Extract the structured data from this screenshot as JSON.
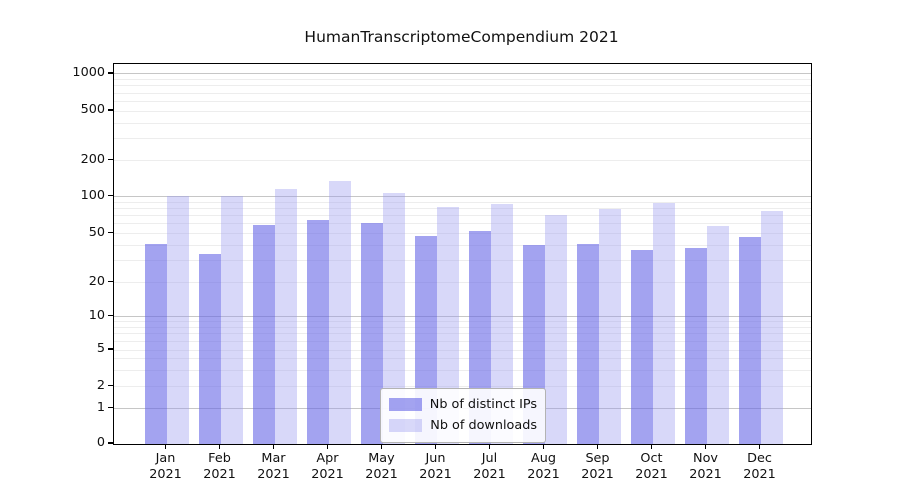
{
  "chart_data": {
    "type": "bar",
    "title": "HumanTranscriptomeCompendium 2021",
    "categories": [
      "Jan 2021",
      "Feb 2021",
      "Mar 2021",
      "Apr 2021",
      "May 2021",
      "Jun 2021",
      "Jul 2021",
      "Aug 2021",
      "Sep 2021",
      "Oct 2021",
      "Nov 2021",
      "Dec 2021"
    ],
    "series": [
      {
        "name": "Nb of distinct IPs",
        "color": "rgba(102,102,230,0.6)",
        "values": [
          41,
          34,
          59,
          65,
          61,
          48,
          52,
          40,
          41,
          37,
          38,
          47
        ]
      },
      {
        "name": "Nb of downloads",
        "color": "rgba(153,153,238,0.38)",
        "values": [
          101,
          102,
          115,
          134,
          108,
          82,
          88,
          71,
          80,
          89,
          58,
          76
        ]
      }
    ],
    "xlabel": "",
    "ylabel": "",
    "yscale": "symlog",
    "yticks": [
      0,
      1,
      2,
      5,
      10,
      20,
      50,
      100,
      200,
      500,
      1000
    ],
    "ylim": [
      0,
      1200
    ],
    "grid": true,
    "legend": {
      "entries": [
        "Nb of distinct IPs",
        "Nb of downloads"
      ],
      "position": "lower-center"
    },
    "colors": {
      "major_grid": "#c6c6c6",
      "minor_grid": "#ededed",
      "spine": "#000000",
      "text": "#111111",
      "legend_border": "#b3b3b3",
      "legend_bg": "rgba(255,255,255,0.9)"
    }
  }
}
